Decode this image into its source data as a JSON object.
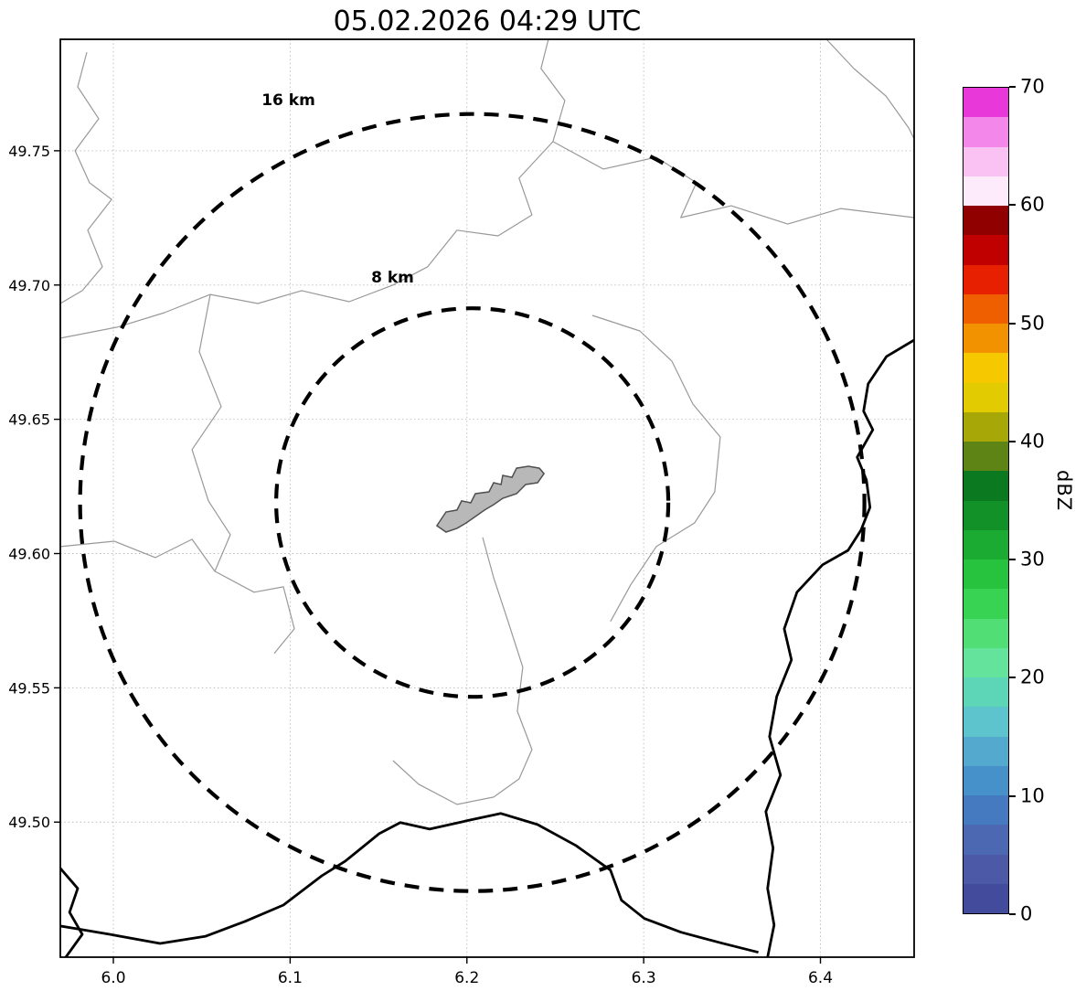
{
  "chart_data": {
    "type": "map",
    "title": "05.02.2026 04:29 UTC",
    "xlim": [
      5.97,
      6.453
    ],
    "ylim": [
      49.4497,
      49.7915
    ],
    "xticks": [
      6.0,
      6.1,
      6.2,
      6.3,
      6.4
    ],
    "xtick_labels": [
      "6.0",
      "6.1",
      "6.2",
      "6.3",
      "6.4"
    ],
    "yticks": [
      49.5,
      49.55,
      49.6,
      49.65,
      49.7,
      49.75
    ],
    "ytick_labels": [
      "49.50",
      "49.55",
      "49.60",
      "49.65",
      "49.70",
      "49.75"
    ],
    "grid": true,
    "center": [
      6.203,
      49.619
    ],
    "range_rings": [
      {
        "label": "16 km",
        "radius_km": 16,
        "label_pos": [
          6.099,
          49.767
        ]
      },
      {
        "label": "8 km",
        "radius_km": 8,
        "label_pos": [
          6.158,
          49.701
        ]
      }
    ],
    "colors": {
      "ring": "#000000",
      "river": "#999999",
      "border": "#000000",
      "city_fill": "#b8b8b8",
      "city_stroke": "#505050",
      "grid": "#bbbbbb",
      "frame": "#000000"
    },
    "city_polygon": [
      [
        6.183,
        49.6104
      ],
      [
        6.1882,
        49.6155
      ],
      [
        6.1944,
        49.6162
      ],
      [
        6.197,
        49.6196
      ],
      [
        6.2022,
        49.6189
      ],
      [
        6.2048,
        49.6223
      ],
      [
        6.2125,
        49.623
      ],
      [
        6.2151,
        49.6264
      ],
      [
        6.2193,
        49.6257
      ],
      [
        6.2203,
        49.6291
      ],
      [
        6.2255,
        49.6284
      ],
      [
        6.2281,
        49.6318
      ],
      [
        6.2348,
        49.6325
      ],
      [
        6.241,
        49.6318
      ],
      [
        6.2436,
        49.6298
      ],
      [
        6.24,
        49.6264
      ],
      [
        6.2332,
        49.6257
      ],
      [
        6.2281,
        49.6223
      ],
      [
        6.2203,
        49.6206
      ],
      [
        6.2151,
        49.6182
      ],
      [
        6.21,
        49.6162
      ],
      [
        6.2048,
        49.6138
      ],
      [
        6.1996,
        49.6114
      ],
      [
        6.1944,
        49.6094
      ],
      [
        6.1882,
        49.608
      ]
    ],
    "rivers": [
      [
        [
          5.985,
          49.7867
        ],
        [
          5.9798,
          49.7738
        ],
        [
          5.9917,
          49.7619
        ],
        [
          5.9783,
          49.75
        ],
        [
          5.9865,
          49.7381
        ],
        [
          5.999,
          49.7319
        ],
        [
          5.9855,
          49.7204
        ],
        [
          5.9938,
          49.7068
        ],
        [
          5.9824,
          49.6979
        ],
        [
          5.97,
          49.6931
        ]
      ],
      [
        [
          6.2461,
          49.7915
        ],
        [
          6.2419,
          49.7806
        ],
        [
          6.2554,
          49.7687
        ],
        [
          6.2487,
          49.7534
        ],
        [
          6.2295,
          49.7398
        ],
        [
          6.2368,
          49.7261
        ],
        [
          6.2176,
          49.7183
        ],
        [
          6.1944,
          49.7204
        ],
        [
          6.1778,
          49.7068
        ],
        [
          6.1582,
          49.7
        ],
        [
          6.1334,
          49.6938
        ],
        [
          6.1065,
          49.6979
        ],
        [
          6.0817,
          49.6931
        ],
        [
          6.0548,
          49.6965
        ],
        [
          6.0289,
          49.6897
        ],
        [
          6.0021,
          49.6843
        ],
        [
          5.97,
          49.6802
        ]
      ],
      [
        [
          6.2487,
          49.7534
        ],
        [
          6.2771,
          49.7432
        ],
        [
          6.3071,
          49.7476
        ],
        [
          6.3298,
          49.7381
        ],
        [
          6.321,
          49.7251
        ],
        [
          6.3495,
          49.7295
        ],
        [
          6.3815,
          49.7227
        ],
        [
          6.4115,
          49.7285
        ],
        [
          6.453,
          49.7251
        ]
      ],
      [
        [
          6.0548,
          49.6965
        ],
        [
          6.0486,
          49.6751
        ],
        [
          6.061,
          49.6547
        ],
        [
          6.0445,
          49.6387
        ],
        [
          6.0538,
          49.6196
        ],
        [
          6.0662,
          49.607
        ],
        [
          6.0574,
          49.5934
        ],
        [
          6.0796,
          49.5856
        ],
        [
          6.0962,
          49.5876
        ],
        [
          6.1024,
          49.572
        ],
        [
          6.091,
          49.5628
        ]
      ],
      [
        [
          5.97,
          49.6026
        ],
        [
          6.0005,
          49.6046
        ],
        [
          6.0238,
          49.5985
        ],
        [
          6.0445,
          49.6053
        ],
        [
          6.0574,
          49.5934
        ]
      ],
      [
        [
          6.2089,
          49.606
        ],
        [
          6.2151,
          49.591
        ],
        [
          6.2233,
          49.5747
        ],
        [
          6.2316,
          49.5577
        ],
        [
          6.2285,
          49.5413
        ],
        [
          6.2368,
          49.527
        ],
        [
          6.2295,
          49.5161
        ],
        [
          6.2151,
          49.5093
        ],
        [
          6.1944,
          49.5066
        ],
        [
          6.1727,
          49.5141
        ],
        [
          6.1582,
          49.5229
        ]
      ],
      [
        [
          6.2709,
          49.6887
        ],
        [
          6.2978,
          49.6829
        ],
        [
          6.3159,
          49.6717
        ],
        [
          6.3278,
          49.6557
        ],
        [
          6.3433,
          49.6434
        ],
        [
          6.3402,
          49.623
        ],
        [
          6.3288,
          49.6114
        ],
        [
          6.3071,
          49.6026
        ],
        [
          6.2926,
          49.5883
        ],
        [
          6.2812,
          49.5747
        ]
      ],
      [
        [
          6.4034,
          49.7915
        ],
        [
          6.4189,
          49.7806
        ],
        [
          6.437,
          49.7704
        ],
        [
          6.4499,
          49.7585
        ],
        [
          6.453,
          49.7544
        ]
      ]
    ],
    "borders": [
      [
        [
          6.453,
          49.6795
        ],
        [
          6.4374,
          49.6734
        ],
        [
          6.427,
          49.6632
        ],
        [
          6.4244,
          49.653
        ],
        [
          6.4296,
          49.6461
        ],
        [
          6.4208,
          49.6359
        ],
        [
          6.426,
          49.6274
        ],
        [
          6.428,
          49.6172
        ],
        [
          6.4229,
          49.6087
        ],
        [
          6.4156,
          49.6012
        ],
        [
          6.4012,
          49.5958
        ],
        [
          6.3867,
          49.5856
        ],
        [
          6.3795,
          49.572
        ],
        [
          6.3836,
          49.5604
        ],
        [
          6.3753,
          49.5468
        ],
        [
          6.3712,
          49.5318
        ],
        [
          6.3774,
          49.5175
        ],
        [
          6.3691,
          49.5039
        ],
        [
          6.3732,
          49.4903
        ],
        [
          6.3701,
          49.4753
        ],
        [
          6.3738,
          49.4617
        ],
        [
          6.3701,
          49.4497
        ]
      ],
      [
        [
          5.97,
          49.4613
        ],
        [
          5.9979,
          49.4582
        ],
        [
          6.0264,
          49.4548
        ],
        [
          6.0522,
          49.4575
        ],
        [
          6.0744,
          49.463
        ],
        [
          6.0962,
          49.4691
        ],
        [
          6.1179,
          49.48
        ],
        [
          6.1313,
          49.4855
        ],
        [
          6.1504,
          49.4957
        ],
        [
          6.1623,
          49.4998
        ],
        [
          6.1789,
          49.4974
        ],
        [
          6.2047,
          49.5012
        ],
        [
          6.2192,
          49.5032
        ],
        [
          6.2399,
          49.4991
        ],
        [
          6.2616,
          49.4913
        ],
        [
          6.2812,
          49.4821
        ],
        [
          6.2874,
          49.4709
        ],
        [
          6.3004,
          49.4641
        ],
        [
          6.3211,
          49.459
        ],
        [
          6.3443,
          49.4549
        ],
        [
          6.3649,
          49.4515
        ]
      ],
      [
        [
          5.97,
          49.4828
        ],
        [
          5.9798,
          49.4753
        ],
        [
          5.9752,
          49.4664
        ],
        [
          5.9824,
          49.4582
        ],
        [
          5.9731,
          49.4497
        ]
      ]
    ],
    "colorbar": {
      "label": "dBZ",
      "vmin": 0,
      "vmax": 70,
      "ticks": [
        0,
        10,
        20,
        30,
        40,
        50,
        60,
        70
      ],
      "colors": [
        "#434b9c",
        "#4b59a7",
        "#4c68b2",
        "#4579c0",
        "#4691c9",
        "#53aace",
        "#5dc3cc",
        "#5dd6b8",
        "#64e39d",
        "#51de75",
        "#38d353",
        "#27c33e",
        "#1bab32",
        "#119128",
        "#0a791f",
        "#5d8414",
        "#a8a708",
        "#e3cb02",
        "#f6c800",
        "#f39200",
        "#ef5f00",
        "#e62000",
        "#c00000",
        "#900000",
        "#fdebfb",
        "#f9c2f3",
        "#f387ea",
        "#e838da"
      ]
    }
  }
}
